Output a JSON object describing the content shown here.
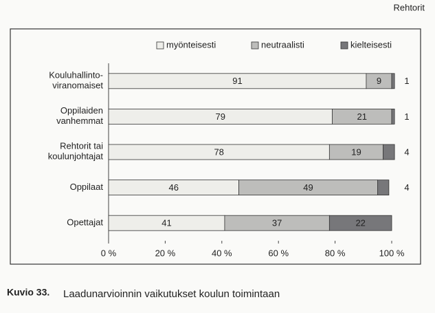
{
  "header": "Rehtorit",
  "chart_data": {
    "type": "stacked-barh",
    "categories": [
      "Kouluhallinto-\nviranomaiset",
      "Oppilaiden\nvanhemmat",
      "Rehtorit tai\nkoulunjohtajat",
      "Oppilaat",
      "Opettajat"
    ],
    "series": [
      {
        "name": "myönteisesti",
        "color": "#eeeeea",
        "values": [
          91,
          79,
          78,
          46,
          41
        ]
      },
      {
        "name": "neutraalisti",
        "color": "#bdbdbb",
        "values": [
          9,
          21,
          19,
          49,
          37
        ]
      },
      {
        "name": "kielteisesti",
        "color": "#77777a",
        "values": [
          1,
          1,
          4,
          4,
          22
        ]
      }
    ],
    "xlim": [
      0,
      100
    ],
    "xticks": [
      {
        "value": 0,
        "label": "0 %"
      },
      {
        "value": 20,
        "label": "20 %"
      },
      {
        "value": 40,
        "label": "40 %"
      },
      {
        "value": 60,
        "label": "60 %"
      },
      {
        "value": 80,
        "label": "80 %"
      },
      {
        "value": 100,
        "label": "100 %"
      }
    ],
    "legend": "top"
  },
  "caption": {
    "number": "Kuvio 33.",
    "text": "Laadunarvioinnin vaikutukset koulun toimintaan"
  }
}
